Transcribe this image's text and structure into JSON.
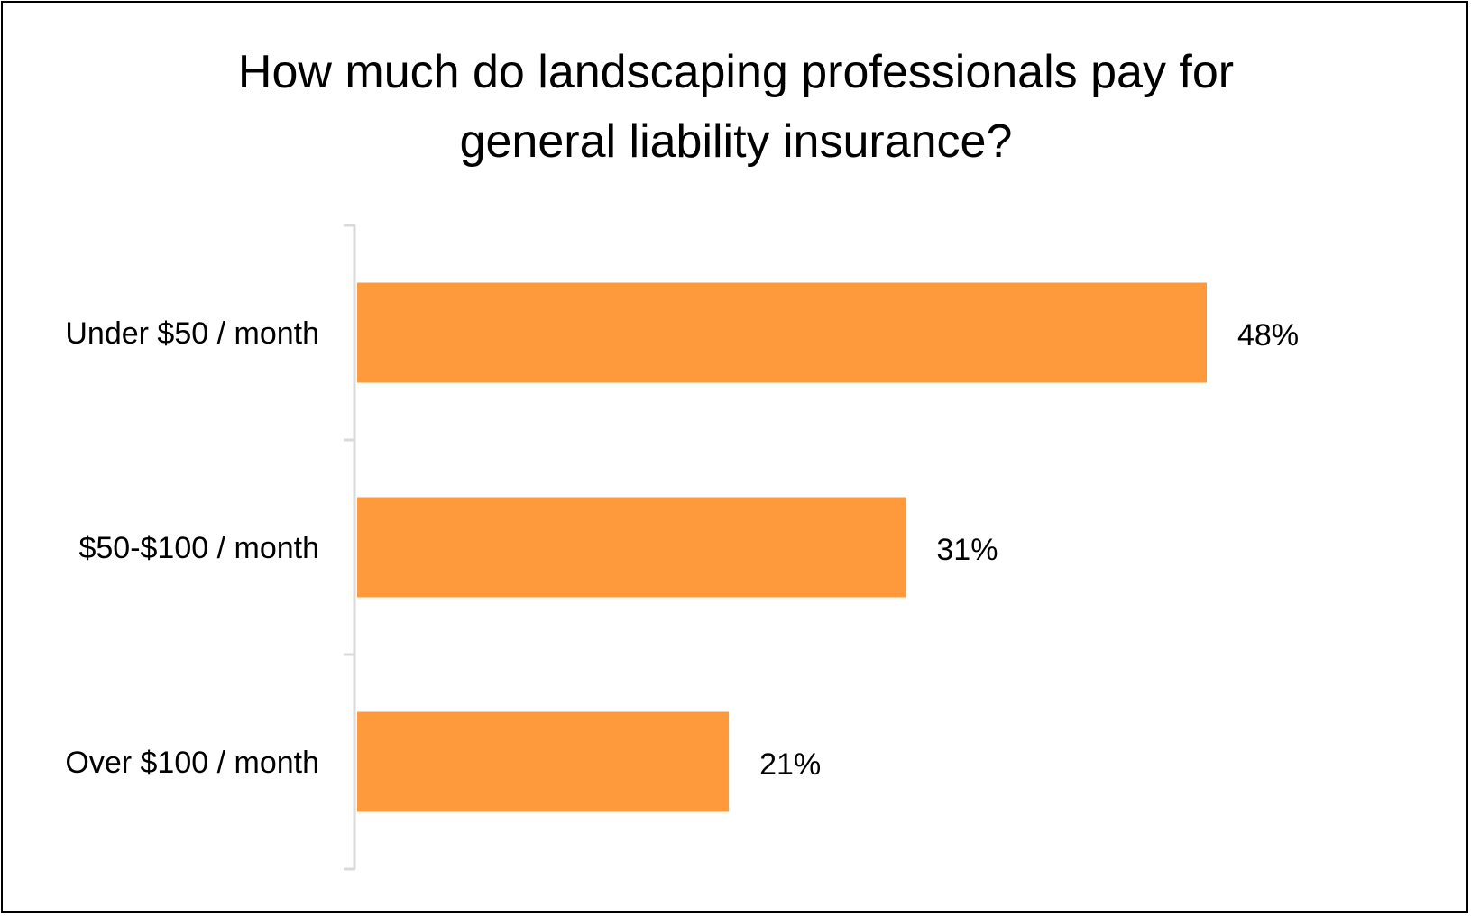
{
  "chart_data": {
    "type": "bar",
    "orientation": "horizontal",
    "title": "How much do landscaping professionals pay for general liability insurance?",
    "title_lines": [
      "How much do landscaping professionals pay for",
      "general liability insurance?"
    ],
    "categories": [
      "Under $50 / month",
      "$50-$100 / month",
      "Over $100 / month"
    ],
    "values": [
      48,
      31,
      21
    ],
    "data_labels": [
      "48%",
      "31%",
      "21%"
    ],
    "unit": "%",
    "xlim": [
      0,
      48
    ],
    "grid": false,
    "legend": "none",
    "colors": {
      "bar": "#FF9A3C",
      "axis": "#D9D9D9"
    }
  }
}
